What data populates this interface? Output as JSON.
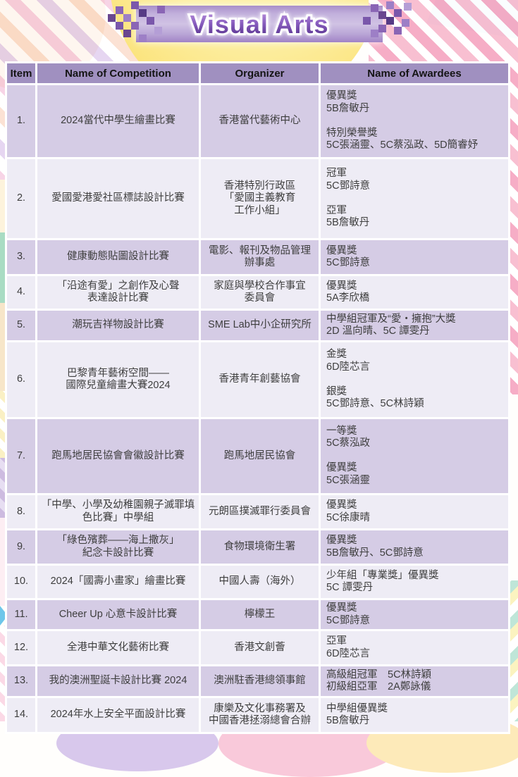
{
  "banner": {
    "title": "Visual Arts"
  },
  "colors": {
    "banner_bar": "#b9a5d6",
    "banner_pixels_dark": "#6a478f",
    "header_bg": "#a090c0",
    "row_dark": "#d5cce5",
    "row_light": "#eeecf5",
    "stripe_pink": "#f8bccf",
    "circle_yellow": "#fbe47e"
  },
  "table": {
    "headers": [
      "Item",
      "Name of Competition",
      "Organizer",
      "Name of Awardees"
    ],
    "rows": [
      {
        "item": "1.",
        "competition": "2024當代中學生繪畫比賽",
        "organizer": "香港當代藝術中心",
        "awardees": "優異獎\n5B詹敏丹\n\n特別榮譽獎\n5C張涵靈、5C蔡泓政、5D簡睿妤"
      },
      {
        "item": "2.",
        "competition": "愛國愛港愛社區標誌設計比賽",
        "organizer": "香港特別行政區\n「愛國主義教育\n工作小組」",
        "awardees": "冠軍\n5C鄧詩意\n\n亞軍\n5B詹敏丹"
      },
      {
        "item": "3.",
        "competition": "健康動態貼圖設計比賽",
        "organizer": "電影、報刊及物品管理\n辦事處",
        "awardees": "優異獎\n5C鄧詩意"
      },
      {
        "item": "4.",
        "competition": "「沿途有愛」之創作及心聲\n表達設計比賽",
        "organizer": "家庭與學校合作事宜\n委員會",
        "awardees": "優異獎\n5A李欣橋"
      },
      {
        "item": "5.",
        "competition": "潮玩吉祥物設計比賽",
        "organizer": "SME Lab中小企研究所",
        "awardees": "中學組冠軍及“愛・擁抱”大獎\n2D 溫向晴、5C 譚雯丹"
      },
      {
        "item": "6.",
        "competition": "巴黎青年藝術空間——\n國際兒童繪畫大賽2024",
        "organizer": "香港青年創藝協會",
        "awardees": "金獎\n6D陸芯言\n\n銀獎\n5C鄧詩意、5C林詩穎"
      },
      {
        "item": "7.",
        "competition": "跑馬地居民協會會徽設計比賽",
        "organizer": "跑馬地居民協會",
        "awardees": "一等獎\n5C蔡泓政\n\n優異獎\n5C張涵靈"
      },
      {
        "item": "8.",
        "competition": "「中學、小學及幼稚園親子滅罪填\n色比賽」中學組",
        "organizer": "元朗區撲滅罪行委員會",
        "awardees": "優異獎\n5C徐康晴"
      },
      {
        "item": "9.",
        "competition": "「綠色殯葬——海上撒灰」\n紀念卡設計比賽",
        "organizer": "食物環境衛生署",
        "awardees": "優異獎\n5B詹敏丹、5C鄧詩意"
      },
      {
        "item": "10.",
        "competition": "2024「國壽小畫家」繪畫比賽",
        "organizer": "中國人壽（海外）",
        "awardees": "少年組「專業獎」優異獎\n 5C 譚雯丹"
      },
      {
        "item": "11.",
        "competition": "Cheer Up 心意卡設計比賽",
        "organizer": "檸檬王",
        "awardees": "優異獎\n5C鄧詩意"
      },
      {
        "item": "12.",
        "competition": "全港中華文化藝術比賽",
        "organizer": "香港文創薈",
        "awardees": "亞軍\n6D陸芯言"
      },
      {
        "item": "13.",
        "competition": "我的澳洲聖誕卡設計比賽 2024",
        "organizer": "澳洲駐香港總領事館",
        "awardees": "高級組冠軍　5C林詩穎\n初級組亞軍　2A鄭詠儀"
      },
      {
        "item": "14.",
        "competition": "2024年水上安全平面設計比賽",
        "organizer": "康樂及文化事務署及\n中國香港拯溺總會合辦",
        "awardees": "中學組優異獎\n5B詹敏丹"
      }
    ]
  }
}
